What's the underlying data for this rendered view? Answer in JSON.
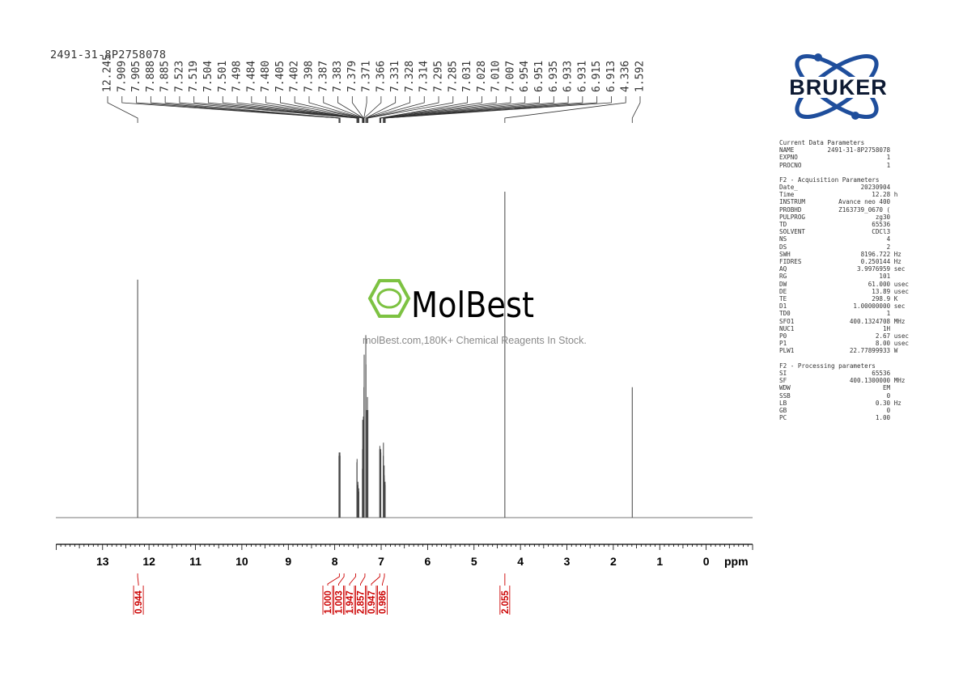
{
  "sample_name": "2491-31-8P2758078",
  "chart_data": {
    "type": "nmr_spectrum",
    "xlabel": "ppm",
    "xlim": [
      14.0,
      -1.0
    ],
    "x_ticks": [
      "13",
      "12",
      "11",
      "10",
      "9",
      "8",
      "7",
      "6",
      "5",
      "4",
      "3",
      "2",
      "1",
      "0"
    ],
    "peak_labels": [
      "12.245",
      "7.909",
      "7.905",
      "7.888",
      "7.885",
      "7.523",
      "7.519",
      "7.504",
      "7.501",
      "7.498",
      "7.484",
      "7.480",
      "7.405",
      "7.402",
      "7.398",
      "7.387",
      "7.383",
      "7.379",
      "7.371",
      "7.366",
      "7.331",
      "7.328",
      "7.314",
      "7.295",
      "7.285",
      "7.031",
      "7.028",
      "7.010",
      "7.007",
      "6.954",
      "6.951",
      "6.935",
      "6.933",
      "6.931",
      "6.915",
      "6.913",
      "4.336",
      "1.592"
    ],
    "peaks": [
      {
        "ppm": 12.245,
        "height": 0.73
      },
      {
        "ppm": 7.909,
        "height": 0.19
      },
      {
        "ppm": 7.905,
        "height": 0.2
      },
      {
        "ppm": 7.888,
        "height": 0.2
      },
      {
        "ppm": 7.885,
        "height": 0.19
      },
      {
        "ppm": 7.523,
        "height": 0.17
      },
      {
        "ppm": 7.519,
        "height": 0.18
      },
      {
        "ppm": 7.504,
        "height": 0.1
      },
      {
        "ppm": 7.501,
        "height": 0.11
      },
      {
        "ppm": 7.498,
        "height": 0.1
      },
      {
        "ppm": 7.484,
        "height": 0.09
      },
      {
        "ppm": 7.48,
        "height": 0.08
      },
      {
        "ppm": 7.405,
        "height": 0.15
      },
      {
        "ppm": 7.402,
        "height": 0.21
      },
      {
        "ppm": 7.398,
        "height": 0.3
      },
      {
        "ppm": 7.387,
        "height": 0.22
      },
      {
        "ppm": 7.383,
        "height": 0.31
      },
      {
        "ppm": 7.379,
        "height": 0.27
      },
      {
        "ppm": 7.371,
        "height": 0.4
      },
      {
        "ppm": 7.366,
        "height": 0.5
      },
      {
        "ppm": 7.331,
        "height": 0.56
      },
      {
        "ppm": 7.328,
        "height": 0.47
      },
      {
        "ppm": 7.314,
        "height": 0.33
      },
      {
        "ppm": 7.295,
        "height": 0.37
      },
      {
        "ppm": 7.285,
        "height": 0.33
      },
      {
        "ppm": 7.031,
        "height": 0.21
      },
      {
        "ppm": 7.028,
        "height": 0.22
      },
      {
        "ppm": 7.01,
        "height": 0.21
      },
      {
        "ppm": 7.007,
        "height": 0.2
      },
      {
        "ppm": 6.954,
        "height": 0.19
      },
      {
        "ppm": 6.951,
        "height": 0.23
      },
      {
        "ppm": 6.935,
        "height": 0.16
      },
      {
        "ppm": 6.933,
        "height": 0.13
      },
      {
        "ppm": 6.931,
        "height": 0.12
      },
      {
        "ppm": 6.915,
        "height": 0.11
      },
      {
        "ppm": 6.913,
        "height": 0.1
      },
      {
        "ppm": 4.336,
        "height": 1.0
      },
      {
        "ppm": 1.592,
        "height": 0.4
      }
    ],
    "integrals": [
      {
        "ppm": 12.245,
        "value": "0.944"
      },
      {
        "ppm": 7.9,
        "value": "1.000"
      },
      {
        "ppm": 7.8,
        "value": "1.003"
      },
      {
        "ppm": 7.55,
        "value": "1.947"
      },
      {
        "ppm": 7.35,
        "value": "2.857"
      },
      {
        "ppm": 7.03,
        "value": "0.947"
      },
      {
        "ppm": 6.93,
        "value": "0.986"
      },
      {
        "ppm": 4.336,
        "value": "2.055"
      }
    ]
  },
  "watermark": {
    "brand": "MolBest",
    "tagline": "molBest.com,180K+ Chemical Reagents In Stock.",
    "color": "#7dc242"
  },
  "logo": {
    "text": "BRUKER",
    "color": "#1f4e9c"
  },
  "parameters": {
    "current_header": "Current Data Parameters",
    "current": [
      {
        "key": "NAME",
        "value": "2491-31-8P2758078",
        "unit": ""
      },
      {
        "key": "EXPNO",
        "value": "1",
        "unit": ""
      },
      {
        "key": "PROCNO",
        "value": "1",
        "unit": ""
      }
    ],
    "acq_header": "F2 - Acquisition Parameters",
    "acq": [
      {
        "key": "Date_",
        "value": "20230904",
        "unit": ""
      },
      {
        "key": "Time",
        "value": "12.28",
        "unit": "h"
      },
      {
        "key": "INSTRUM",
        "value": "Avance neo 400",
        "unit": ""
      },
      {
        "key": "PROBHD",
        "value": "Z163739_0670 (",
        "unit": ""
      },
      {
        "key": "PULPROG",
        "value": "zg30",
        "unit": ""
      },
      {
        "key": "TD",
        "value": "65536",
        "unit": ""
      },
      {
        "key": "SOLVENT",
        "value": "CDCl3",
        "unit": ""
      },
      {
        "key": "NS",
        "value": "4",
        "unit": ""
      },
      {
        "key": "DS",
        "value": "2",
        "unit": ""
      },
      {
        "key": "SWH",
        "value": "8196.722",
        "unit": "Hz"
      },
      {
        "key": "FIDRES",
        "value": "0.250144",
        "unit": "Hz"
      },
      {
        "key": "AQ",
        "value": "3.9976959",
        "unit": "sec"
      },
      {
        "key": "RG",
        "value": "101",
        "unit": ""
      },
      {
        "key": "DW",
        "value": "61.000",
        "unit": "usec"
      },
      {
        "key": "DE",
        "value": "13.89",
        "unit": "usec"
      },
      {
        "key": "TE",
        "value": "298.9",
        "unit": "K"
      },
      {
        "key": "D1",
        "value": "1.00000000",
        "unit": "sec"
      },
      {
        "key": "TD0",
        "value": "1",
        "unit": ""
      },
      {
        "key": "SFO1",
        "value": "400.1324708",
        "unit": "MHz"
      },
      {
        "key": "NUC1",
        "value": "1H",
        "unit": ""
      },
      {
        "key": "P0",
        "value": "2.67",
        "unit": "usec"
      },
      {
        "key": "P1",
        "value": "8.00",
        "unit": "usec"
      },
      {
        "key": "PLW1",
        "value": "22.77899933",
        "unit": "W"
      }
    ],
    "proc_header": "F2 - Processing parameters",
    "proc": [
      {
        "key": "SI",
        "value": "65536",
        "unit": ""
      },
      {
        "key": "SF",
        "value": "400.1300000",
        "unit": "MHz"
      },
      {
        "key": "WDW",
        "value": "EM",
        "unit": ""
      },
      {
        "key": "SSB",
        "value": "0",
        "unit": ""
      },
      {
        "key": "LB",
        "value": "0.30",
        "unit": "Hz"
      },
      {
        "key": "GB",
        "value": "0",
        "unit": ""
      },
      {
        "key": "PC",
        "value": "1.00",
        "unit": ""
      }
    ]
  }
}
